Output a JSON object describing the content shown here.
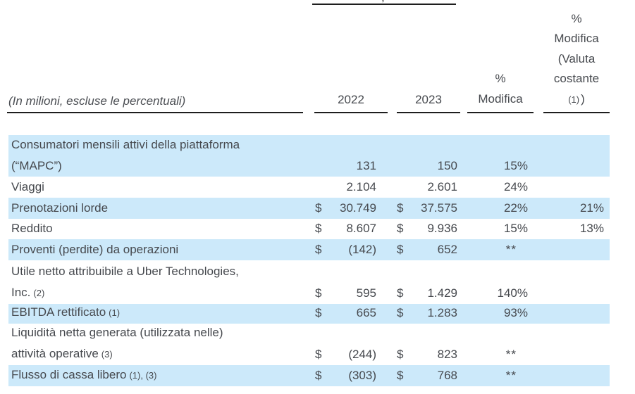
{
  "meta": {
    "truncated_period_comma": ","
  },
  "header": {
    "row_label_note": "(In milioni, escluse le percentuali)",
    "col_2022": "2022",
    "col_2023": "2023",
    "pct_change_lines": [
      "%",
      "Modifica"
    ],
    "pct_change_cc_lines": [
      "%",
      "Modifica",
      "(Valuta",
      "costante"
    ],
    "pct_change_cc_note": "(1)",
    "pct_change_cc_close": ")"
  },
  "table": {
    "currency_symbol": "$",
    "rows": [
      {
        "highlight": true,
        "lines": [
          {
            "text": "Consumatori mensili attivi della piattaforma"
          },
          {
            "text": "(“MAPC”)"
          }
        ],
        "d2022": "",
        "v2022": "131",
        "d2023": "",
        "v2023": "150",
        "pct": "15%",
        "pct_cc": ""
      },
      {
        "highlight": false,
        "lines": [
          {
            "text": "Viaggi"
          }
        ],
        "d2022": "",
        "v2022": "2.104",
        "d2023": "",
        "v2023": "2.601",
        "pct": "24%",
        "pct_cc": ""
      },
      {
        "highlight": true,
        "lines": [
          {
            "text": "Prenotazioni lorde"
          }
        ],
        "d2022": "$",
        "v2022": "30.749",
        "d2023": "$",
        "v2023": "37.575",
        "pct": "22%",
        "pct_cc": "21%"
      },
      {
        "highlight": false,
        "lines": [
          {
            "text": "Reddito"
          }
        ],
        "d2022": "$",
        "v2022": "8.607",
        "d2023": "$",
        "v2023": "9.936",
        "pct": "15%",
        "pct_cc": "13%"
      },
      {
        "highlight": true,
        "lines": [
          {
            "text": "Proventi (perdite) da operazioni"
          }
        ],
        "d2022": "$",
        "v2022": "(142)",
        "d2023": "$",
        "v2023": "652",
        "pct": "**",
        "pct_cc": ""
      },
      {
        "highlight": false,
        "lines": [
          {
            "text": "Utile netto attribuibile a Uber Technologies,"
          },
          {
            "text": "Inc.",
            "note": "(2)"
          }
        ],
        "d2022": "$",
        "v2022": "595",
        "d2023": "$",
        "v2023": "1.429",
        "pct": "140%",
        "pct_cc": ""
      },
      {
        "highlight": true,
        "lines": [
          {
            "text": "EBITDA rettificato",
            "note": "(1)"
          }
        ],
        "d2022": "$",
        "v2022": "665",
        "d2023": "$",
        "v2023": "1.283",
        "pct": "93%",
        "pct_cc": ""
      },
      {
        "highlight": false,
        "lines": [
          {
            "text": "Liquidità netta generata (utilizzata nelle)"
          },
          {
            "text": "attività operative",
            "note": "(3)"
          }
        ],
        "d2022": "$",
        "v2022": "(244)",
        "d2023": "$",
        "v2023": "823",
        "pct": "**",
        "pct_cc": ""
      },
      {
        "highlight": true,
        "lines": [
          {
            "text": "Flusso di cassa libero",
            "note": "(1), (3)"
          }
        ],
        "d2022": "$",
        "v2022": "(303)",
        "d2023": "$",
        "v2023": "768",
        "pct": "**",
        "pct_cc": ""
      }
    ]
  },
  "colors": {
    "highlight": "#CCE9FA",
    "text": "#46494E",
    "rule": "#1E1E1E"
  }
}
